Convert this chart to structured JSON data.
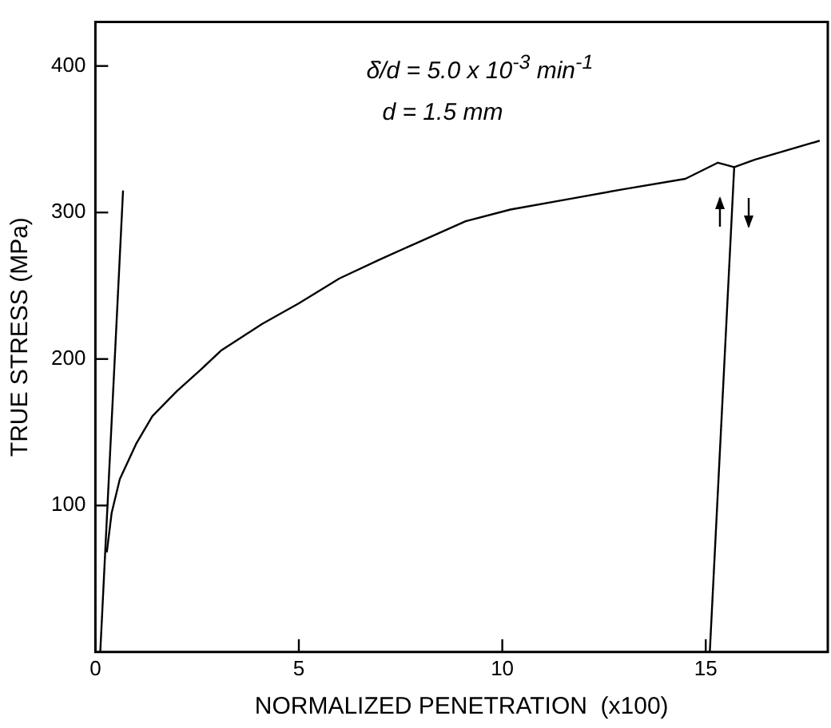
{
  "chart_data": {
    "type": "line",
    "xlabel": "NORMALIZED PENETRATION  (x100)",
    "ylabel": "TRUE STRESS (MPa)",
    "xlim": [
      0,
      18
    ],
    "xticks": [
      0,
      5,
      10,
      15
    ],
    "ylim": [
      0,
      430
    ],
    "yticks": [
      100,
      200,
      300,
      400
    ],
    "grid": false,
    "legend": false,
    "marker": "none",
    "line_style": "solid",
    "annotations": [
      "δ̇/d = 5.0 x 10$^{-3}$ min$^{-1}$",
      "d = 1.5 mm"
    ],
    "series": [
      {
        "color": "#000000",
        "x": [
          0.12,
          0.68
        ],
        "values": [
          0,
          315
        ]
      },
      {
        "color": "#000000",
        "x": [
          0.28,
          0.4,
          0.6,
          1.0,
          1.4,
          2.0,
          2.6,
          3.1,
          4.1,
          5,
          6,
          7,
          7.8,
          9.1,
          10.2,
          11.8,
          13,
          14.5,
          15.3,
          15.7,
          16.2,
          17.8
        ],
        "values": [
          68,
          95,
          118,
          142,
          161,
          178,
          193,
          206,
          224,
          238,
          255,
          268,
          278,
          294,
          302,
          310,
          316,
          323,
          334,
          331,
          336,
          349
        ]
      },
      {
        "color": "#000000",
        "x": [
          15.1,
          15.7
        ],
        "values": [
          0,
          331
        ]
      }
    ]
  }
}
